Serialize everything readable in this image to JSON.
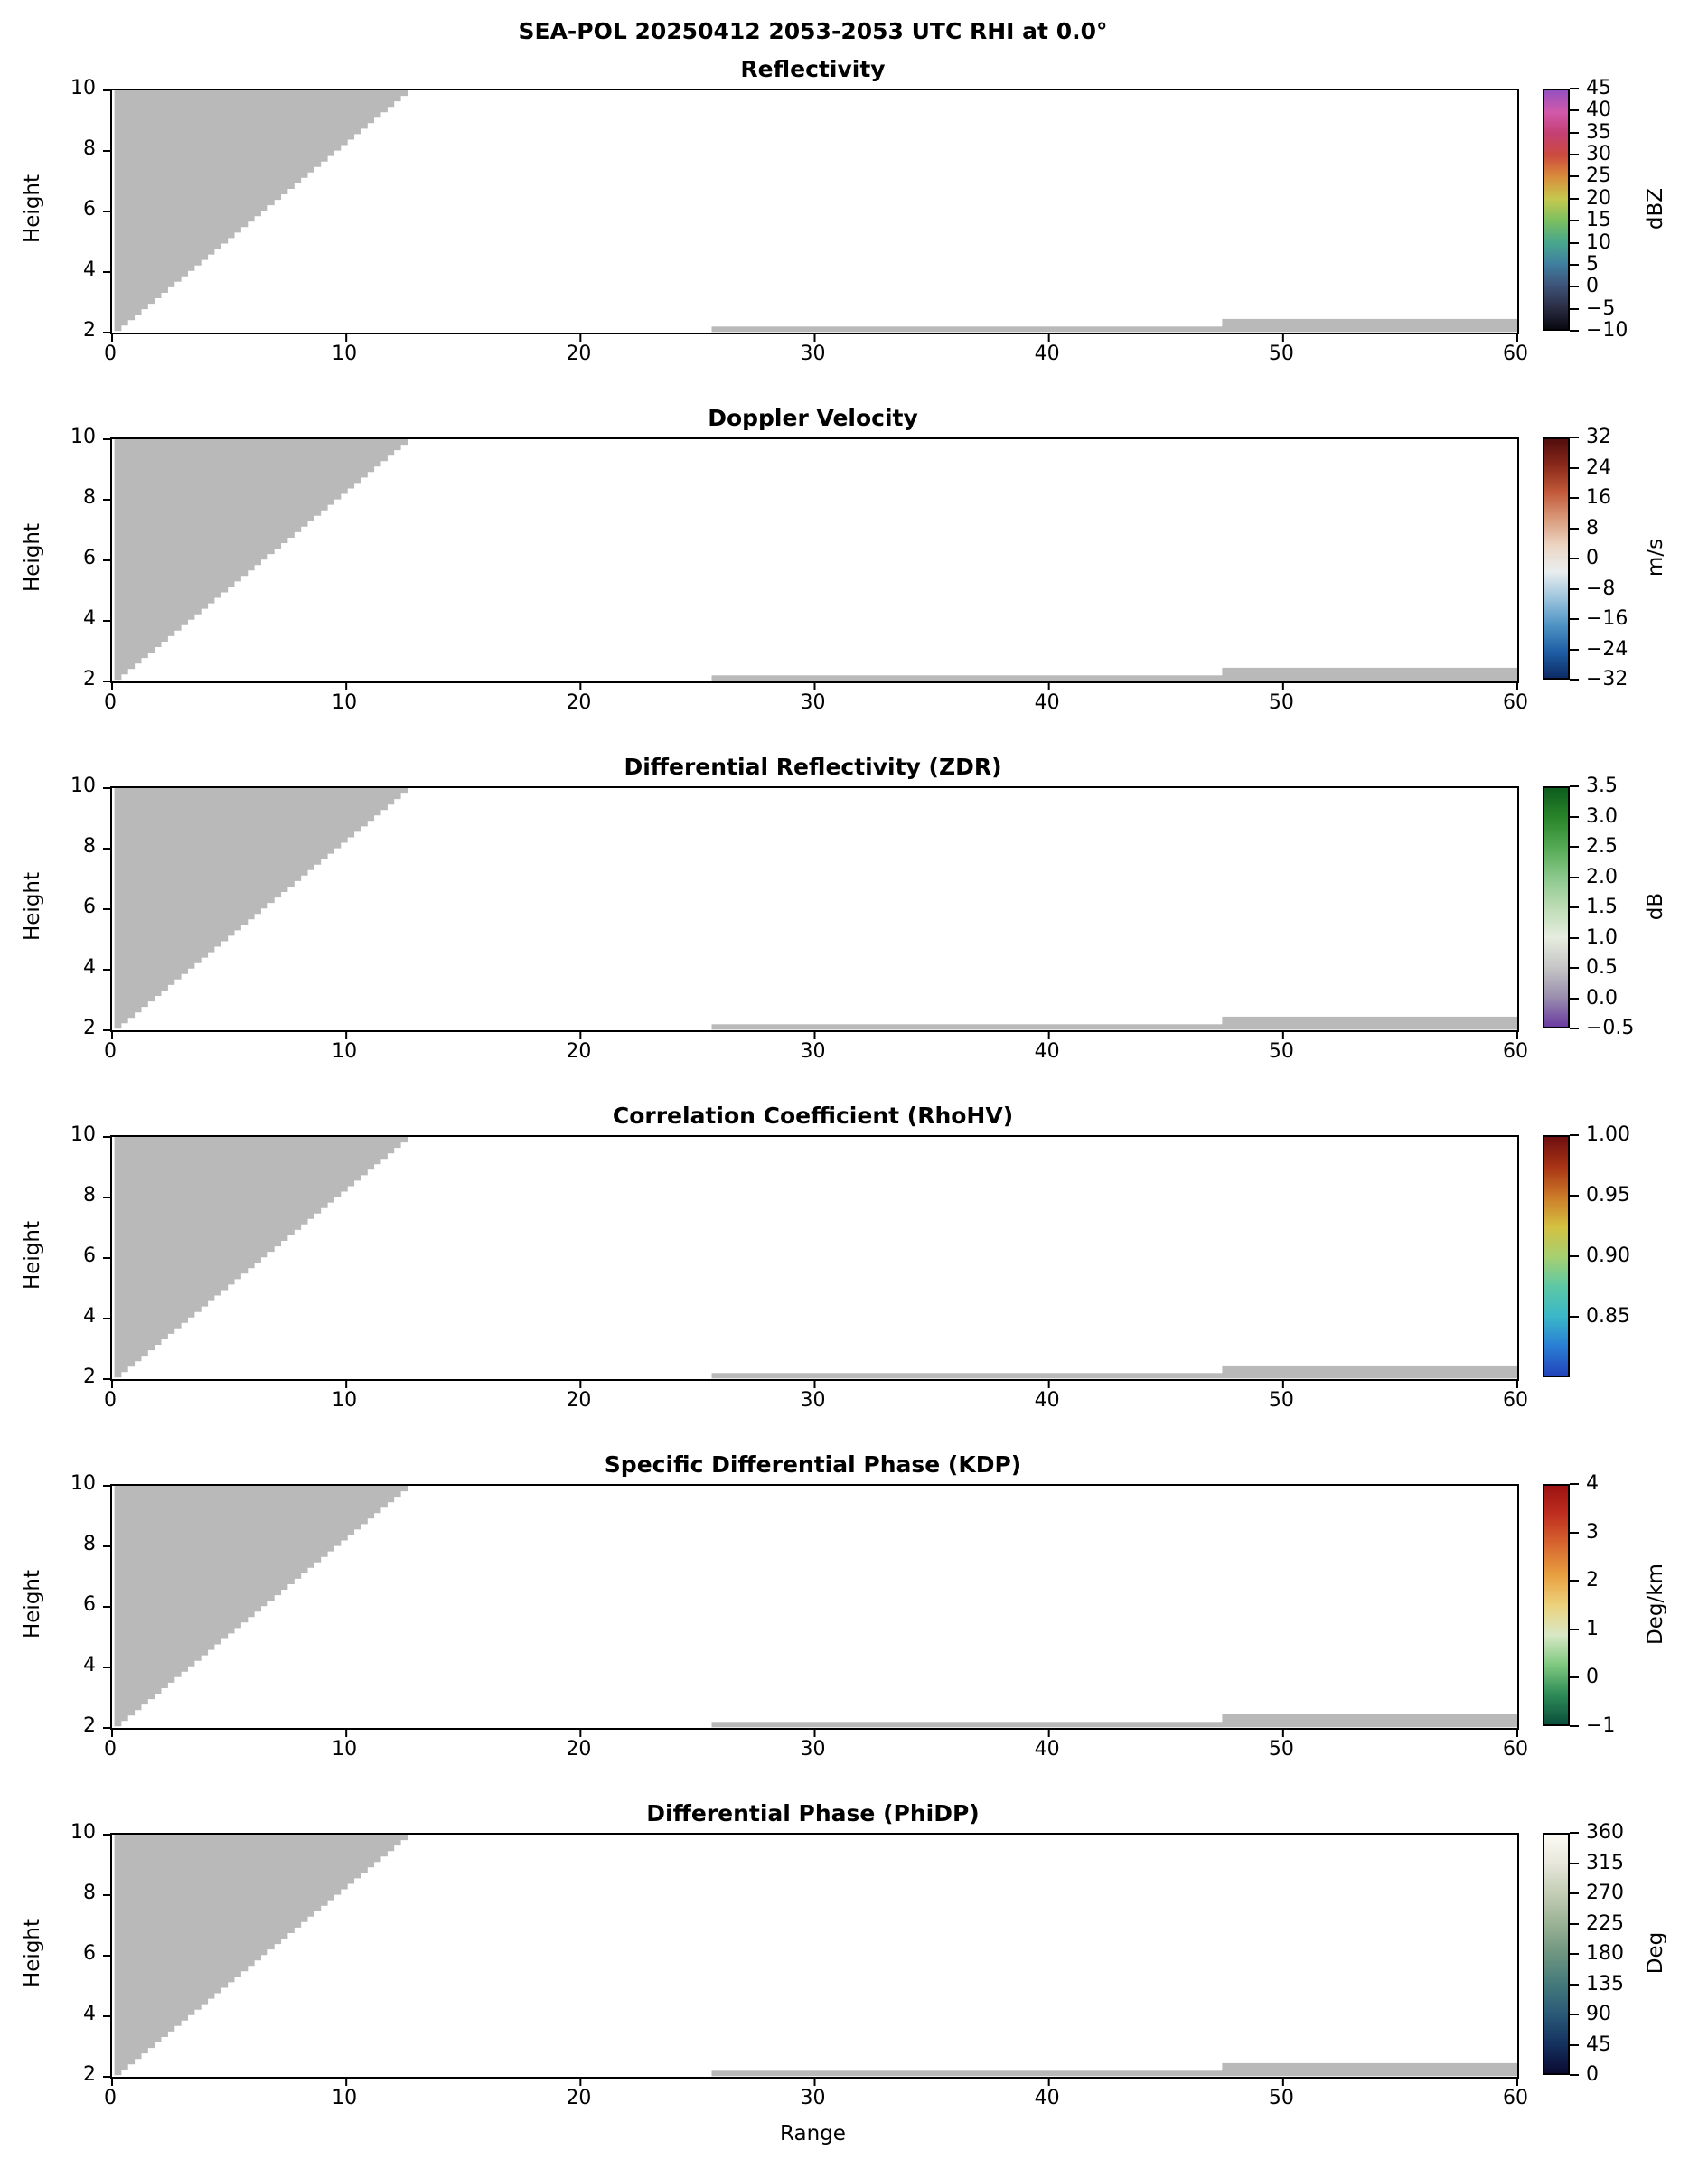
{
  "title": "SEA-POL 20250412 2053-2053 UTC RHI at 0.0°",
  "axes": {
    "xlabel": "Range",
    "ylabel": "Height",
    "x_ticks": [
      0,
      10,
      20,
      30,
      40,
      50,
      60
    ],
    "y_ticks": [
      2,
      4,
      6,
      8,
      10
    ],
    "x_range": [
      0,
      60
    ],
    "y_range": [
      2,
      10
    ]
  },
  "colors": {
    "background": "#ffffff",
    "axis": "#000000",
    "mask_gray": "#b9b9b9"
  },
  "chart_data": {
    "type": "heatmap",
    "description": "Six-panel SEA-POL radar RHI (range-height) cross-sections at azimuth 0.0 deg. All six panels contain no colored echo data; only gray masked/no-data regions are drawn, identical in every panel: a staircase wedge in the upper-left and two thin strips just above the bottom axis.",
    "x_range": [
      0,
      60
    ],
    "y_range": [
      2,
      10
    ],
    "x_ticks": [
      0,
      10,
      20,
      30,
      40,
      50,
      60
    ],
    "y_ticks": [
      2,
      4,
      6,
      8,
      10
    ],
    "mask_regions": {
      "wedge": {
        "comment": "gray staircase wedge in upper-left of every panel, in data coords",
        "x_tip": 0.4,
        "y_tip": 2.05,
        "x_top": 12.9,
        "y_top": 10.0,
        "left_x": 0.1,
        "steps": 44
      },
      "strips": [
        {
          "x0": 25.6,
          "x1": 47.4,
          "y0": 2.02,
          "y1": 2.2
        },
        {
          "x0": 47.4,
          "x1": 60.0,
          "y0": 2.02,
          "y1": 2.45
        }
      ]
    },
    "panels": [
      {
        "title": "Reflectivity",
        "unit": "dBZ",
        "cbar_range": [
          -10,
          45
        ],
        "cbar_tick_values": [
          45,
          40,
          35,
          30,
          25,
          20,
          15,
          10,
          5,
          0,
          -5,
          -10
        ],
        "cbar_tick_labels": [
          "45",
          "40",
          "35",
          "30",
          "25",
          "20",
          "15",
          "10",
          "5",
          "0",
          "−5",
          "−10"
        ],
        "cbar_colors_bottom_to_top": [
          "#080810",
          "#2b2d44",
          "#3d5378",
          "#3f7fa0",
          "#49a78c",
          "#7cbf60",
          "#c6c84e",
          "#d98e3c",
          "#cc4b3d",
          "#c43f72",
          "#d259aa",
          "#9550c0"
        ]
      },
      {
        "title": "Doppler Velocity",
        "unit": "m/s",
        "cbar_range": [
          -32,
          32
        ],
        "cbar_tick_values": [
          32,
          24,
          16,
          8,
          0,
          -8,
          -16,
          -24,
          -32
        ],
        "cbar_tick_labels": [
          "32",
          "24",
          "16",
          "8",
          "0",
          "−8",
          "−16",
          "−24",
          "−32"
        ],
        "cbar_colors_bottom_to_top": [
          "#0d2b66",
          "#1f5fa6",
          "#4f94c4",
          "#9cc4dd",
          "#e9eef0",
          "#ecd5c2",
          "#d99a7a",
          "#c25a3a",
          "#8a2a1a",
          "#520d0d"
        ]
      },
      {
        "title": "Differential Reflectivity (ZDR)",
        "unit": "dB",
        "cbar_range": [
          -0.5,
          3.5
        ],
        "cbar_tick_values": [
          3.5,
          3.0,
          2.5,
          2.0,
          1.5,
          1.0,
          0.5,
          0.0,
          -0.5
        ],
        "cbar_tick_labels": [
          "3.5",
          "3.0",
          "2.5",
          "2.0",
          "1.5",
          "1.0",
          "0.5",
          "0.0",
          "−0.5"
        ],
        "cbar_colors_bottom_to_top": [
          "#6a3aa0",
          "#9a8fae",
          "#c6c6c6",
          "#e6eddf",
          "#bcdcb4",
          "#8cc88c",
          "#55aa55",
          "#2a852a",
          "#0d5c1e"
        ]
      },
      {
        "title": "Correlation Coefficient (RhoHV)",
        "unit": "",
        "cbar_range": [
          0.8,
          1.0
        ],
        "cbar_tick_values": [
          1.0,
          0.95,
          0.9,
          0.85
        ],
        "cbar_tick_labels": [
          "1.00",
          "0.95",
          "0.90",
          "0.85"
        ],
        "cbar_colors_bottom_to_top": [
          "#2244bb",
          "#2a7fd4",
          "#3ab8c8",
          "#5ec8a4",
          "#a8d070",
          "#d4c040",
          "#cc7a28",
          "#a83315",
          "#6e0f0f"
        ]
      },
      {
        "title": "Specific Differential Phase (KDP)",
        "unit": "Deg/km",
        "cbar_range": [
          -1,
          4
        ],
        "cbar_tick_values": [
          4,
          3,
          2,
          1,
          0,
          -1
        ],
        "cbar_tick_labels": [
          "4",
          "3",
          "2",
          "1",
          "0",
          "−1"
        ],
        "cbar_colors_bottom_to_top": [
          "#0a4f3c",
          "#2e8b57",
          "#7fc97f",
          "#d8e8c6",
          "#ecd27c",
          "#e8a040",
          "#d86830",
          "#c03020",
          "#9c1212"
        ]
      },
      {
        "title": "Differential Phase (PhiDP)",
        "unit": "Deg",
        "cbar_range": [
          0,
          360
        ],
        "cbar_tick_values": [
          360,
          315,
          270,
          225,
          180,
          135,
          90,
          45,
          0
        ],
        "cbar_tick_labels": [
          "360",
          "315",
          "270",
          "225",
          "180",
          "135",
          "90",
          "45",
          "0"
        ],
        "cbar_colors_bottom_to_top": [
          "#0a0a32",
          "#143260",
          "#2a5a78",
          "#447a7a",
          "#6e9580",
          "#9ab294",
          "#c2ccb4",
          "#e6e6da",
          "#fbfbf4"
        ]
      }
    ]
  }
}
